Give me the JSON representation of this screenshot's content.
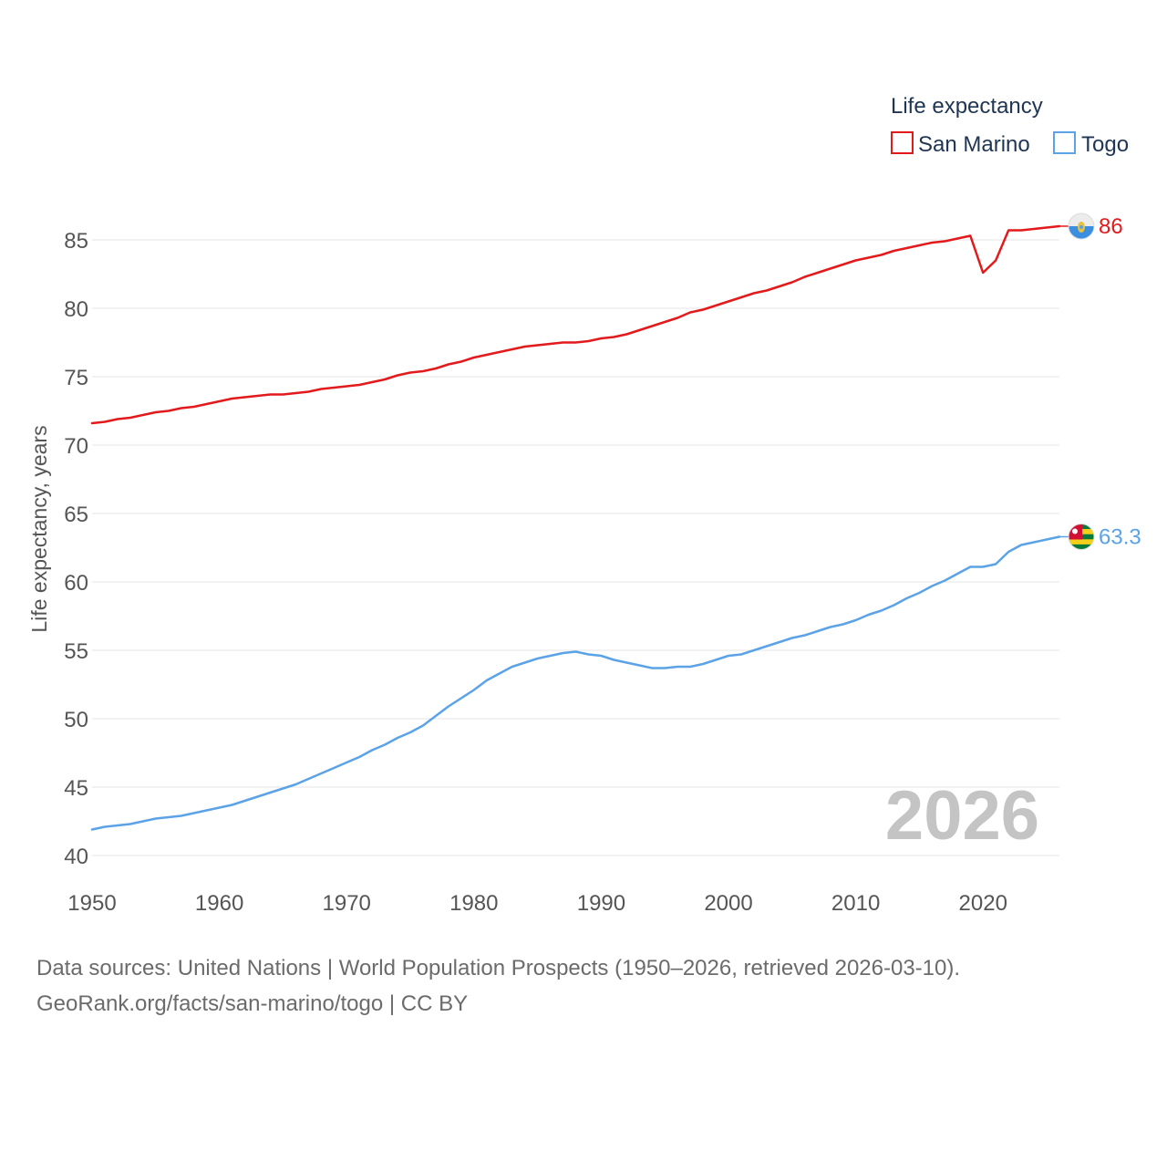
{
  "chart_data": {
    "type": "line",
    "legend_title": "Life expectancy",
    "ylabel": "Life expectancy, years",
    "xlabel": "",
    "x_range": [
      1950,
      2026
    ],
    "ylim": [
      40,
      87
    ],
    "y_ticks": [
      40,
      45,
      50,
      55,
      60,
      65,
      70,
      75,
      80,
      85
    ],
    "x_ticks": [
      1950,
      1960,
      1970,
      1980,
      1990,
      2000,
      2010,
      2020
    ],
    "year_watermark": "2026",
    "legend_placement": "top-right",
    "grid": true,
    "series": [
      {
        "name": "San Marino",
        "color": "#e31a1c",
        "flag_icon": "san-marino-flag-icon",
        "end_label": "86",
        "x": [
          1950,
          1951,
          1952,
          1953,
          1954,
          1955,
          1956,
          1957,
          1958,
          1959,
          1960,
          1961,
          1962,
          1963,
          1964,
          1965,
          1966,
          1967,
          1968,
          1969,
          1970,
          1971,
          1972,
          1973,
          1974,
          1975,
          1976,
          1977,
          1978,
          1979,
          1980,
          1981,
          1982,
          1983,
          1984,
          1985,
          1986,
          1987,
          1988,
          1989,
          1990,
          1991,
          1992,
          1993,
          1994,
          1995,
          1996,
          1997,
          1998,
          1999,
          2000,
          2001,
          2002,
          2003,
          2004,
          2005,
          2006,
          2007,
          2008,
          2009,
          2010,
          2011,
          2012,
          2013,
          2014,
          2015,
          2016,
          2017,
          2018,
          2019,
          2020,
          2021,
          2022,
          2023,
          2024,
          2025,
          2026
        ],
        "values": [
          71.6,
          71.7,
          71.9,
          72.0,
          72.2,
          72.4,
          72.5,
          72.7,
          72.8,
          73.0,
          73.2,
          73.4,
          73.5,
          73.6,
          73.7,
          73.7,
          73.8,
          73.9,
          74.1,
          74.2,
          74.3,
          74.4,
          74.6,
          74.8,
          75.1,
          75.3,
          75.4,
          75.6,
          75.9,
          76.1,
          76.4,
          76.6,
          76.8,
          77.0,
          77.2,
          77.3,
          77.4,
          77.5,
          77.5,
          77.6,
          77.8,
          77.9,
          78.1,
          78.4,
          78.7,
          79.0,
          79.3,
          79.7,
          79.9,
          80.2,
          80.5,
          80.8,
          81.1,
          81.3,
          81.6,
          81.9,
          82.3,
          82.6,
          82.9,
          83.2,
          83.5,
          83.7,
          83.9,
          84.2,
          84.4,
          84.6,
          84.8,
          84.9,
          85.1,
          85.3,
          82.6,
          83.5,
          85.7,
          85.7,
          85.8,
          85.9,
          86.0
        ]
      },
      {
        "name": "Togo",
        "color": "#5ba3e6",
        "flag_icon": "togo-flag-icon",
        "end_label": "63.3",
        "x": [
          1950,
          1951,
          1952,
          1953,
          1954,
          1955,
          1956,
          1957,
          1958,
          1959,
          1960,
          1961,
          1962,
          1963,
          1964,
          1965,
          1966,
          1967,
          1968,
          1969,
          1970,
          1971,
          1972,
          1973,
          1974,
          1975,
          1976,
          1977,
          1978,
          1979,
          1980,
          1981,
          1982,
          1983,
          1984,
          1985,
          1986,
          1987,
          1988,
          1989,
          1990,
          1991,
          1992,
          1993,
          1994,
          1995,
          1996,
          1997,
          1998,
          1999,
          2000,
          2001,
          2002,
          2003,
          2004,
          2005,
          2006,
          2007,
          2008,
          2009,
          2010,
          2011,
          2012,
          2013,
          2014,
          2015,
          2016,
          2017,
          2018,
          2019,
          2020,
          2021,
          2022,
          2023,
          2024,
          2025,
          2026
        ],
        "values": [
          41.9,
          42.1,
          42.2,
          42.3,
          42.5,
          42.7,
          42.8,
          42.9,
          43.1,
          43.3,
          43.5,
          43.7,
          44.0,
          44.3,
          44.6,
          44.9,
          45.2,
          45.6,
          46.0,
          46.4,
          46.8,
          47.2,
          47.7,
          48.1,
          48.6,
          49.0,
          49.5,
          50.2,
          50.9,
          51.5,
          52.1,
          52.8,
          53.3,
          53.8,
          54.1,
          54.4,
          54.6,
          54.8,
          54.9,
          54.7,
          54.6,
          54.3,
          54.1,
          53.9,
          53.7,
          53.7,
          53.8,
          53.8,
          54.0,
          54.3,
          54.6,
          54.7,
          55.0,
          55.3,
          55.6,
          55.9,
          56.1,
          56.4,
          56.7,
          56.9,
          57.2,
          57.6,
          57.9,
          58.3,
          58.8,
          59.2,
          59.7,
          60.1,
          60.6,
          61.1,
          61.1,
          61.3,
          62.2,
          62.7,
          62.9,
          63.1,
          63.3
        ]
      }
    ]
  },
  "footer": {
    "sources": "Data sources: United Nations | World Population Prospects (1950–2026, retrieved 2026-03-10).",
    "link": "GeoRank.org/facts/san-marino/togo | CC BY"
  }
}
